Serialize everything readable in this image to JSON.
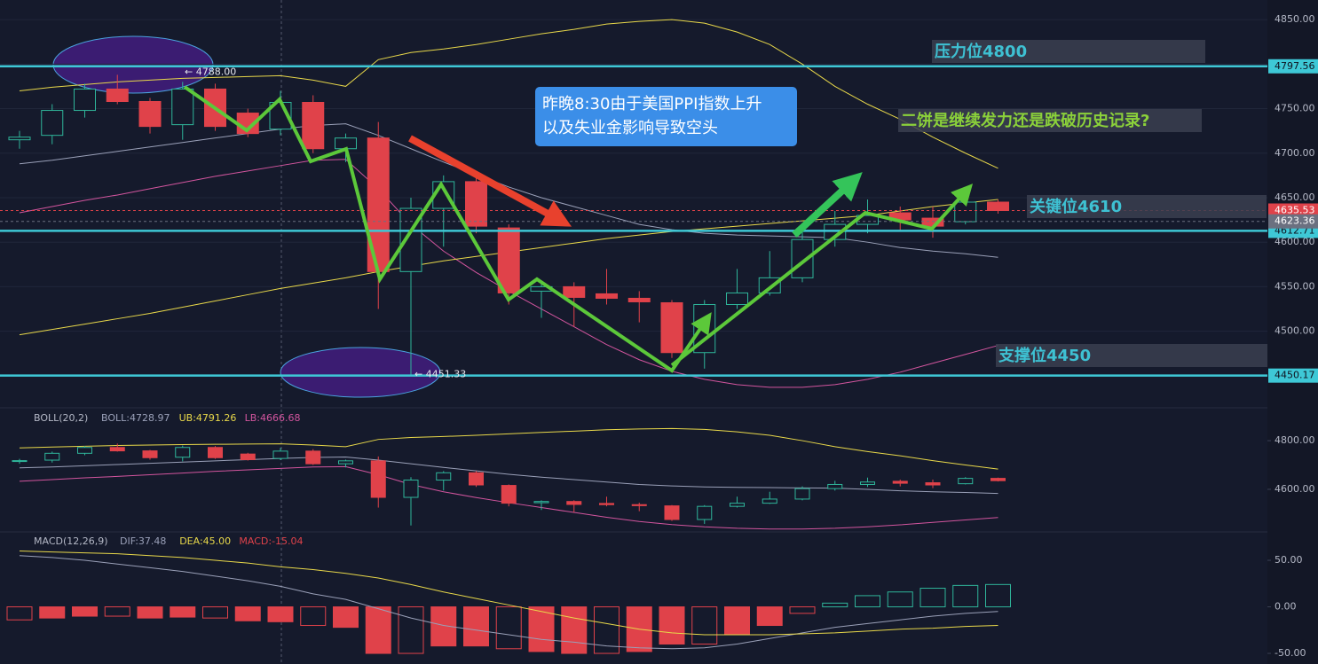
{
  "chart_data": [
    {
      "type": "candlestick",
      "open": [
        4715,
        4720,
        4748,
        4772,
        4758,
        4732,
        4772,
        4745,
        4727,
        4757,
        4705,
        4717,
        4567,
        4638,
        4668,
        4616,
        4545,
        4550,
        4542,
        4537,
        4532,
        4476,
        4530,
        4543,
        4560,
        4603,
        4620,
        4633,
        4627,
        4623,
        4645
      ],
      "high": [
        4725,
        4755,
        4778,
        4788,
        4762,
        4780,
        4778,
        4750,
        4770,
        4765,
        4722,
        4735,
        4650,
        4675,
        4675,
        4620,
        4555,
        4555,
        4570,
        4545,
        4535,
        4535,
        4570,
        4590,
        4612,
        4635,
        4648,
        4640,
        4640,
        4650,
        4648
      ],
      "low": [
        4705,
        4710,
        4740,
        4755,
        4722,
        4715,
        4725,
        4718,
        4720,
        4700,
        4690,
        4525,
        4451.33,
        4595,
        4610,
        4530,
        4515,
        4505,
        4530,
        4510,
        4470,
        4458,
        4525,
        4540,
        4555,
        4595,
        4610,
        4612,
        4605,
        4620,
        4632
      ],
      "close": [
        4718,
        4748,
        4772,
        4758,
        4730,
        4772,
        4730,
        4722,
        4757,
        4705,
        4717,
        4567,
        4638,
        4668,
        4618,
        4543,
        4550,
        4538,
        4537,
        4533,
        4476,
        4530,
        4543,
        4560,
        4603,
        4620,
        4630,
        4625,
        4618,
        4645,
        4635.53
      ],
      "up_color": "#2fb59a",
      "down_color": "#e0424a",
      "series": [
        {
          "color": "#e8d84a",
          "values": [
            4770,
            4774,
            4777,
            4780,
            4782,
            4784,
            4785,
            4786,
            4787,
            4782,
            4775,
            4805,
            4813,
            4817,
            4822,
            4828,
            4834,
            4839,
            4845,
            4848,
            4850,
            4846,
            4836,
            4822,
            4800,
            4775,
            4755,
            4738,
            4718,
            4700,
            4683
          ]
        },
        {
          "color": "#9aa0b8",
          "values": [
            4688,
            4692,
            4697,
            4702,
            4707,
            4712,
            4717,
            4722,
            4727,
            4731,
            4733,
            4720,
            4705,
            4690,
            4676,
            4662,
            4650,
            4640,
            4630,
            4620,
            4614,
            4610,
            4608,
            4607,
            4606,
            4605,
            4600,
            4594,
            4590,
            4587,
            4583
          ]
        },
        {
          "color": "#d2559e",
          "values": [
            4633,
            4640,
            4647,
            4653,
            4660,
            4667,
            4674,
            4680,
            4686,
            4692,
            4693,
            4660,
            4620,
            4590,
            4566,
            4545,
            4525,
            4505,
            4485,
            4468,
            4455,
            4446,
            4440,
            4437,
            4437,
            4440,
            4446,
            4454,
            4464,
            4474,
            4484
          ]
        },
        {
          "color": "#e8d84a",
          "values": [
            4496,
            4502,
            4508,
            4514,
            4520,
            4527,
            4534,
            4541,
            4548,
            4554,
            4560,
            4567,
            4573,
            4579,
            4584,
            4589,
            4594,
            4599,
            4604,
            4608,
            4612,
            4615,
            4618,
            4621,
            4624,
            4627,
            4630,
            4635,
            4640,
            4644,
            4648
          ]
        }
      ],
      "ylim": [
        4414,
        4872
      ],
      "yticks": [
        {
          "value": 4850,
          "label": "4850.00"
        },
        {
          "value": 4800,
          "label": "4800.00"
        },
        {
          "value": 4750,
          "label": "4750.00"
        },
        {
          "value": 4700,
          "label": "4700.00"
        },
        {
          "value": 4650,
          "label": "4650.00"
        },
        {
          "value": 4600,
          "label": "4600.00"
        },
        {
          "value": 4550,
          "label": "4550.00"
        },
        {
          "value": 4500,
          "label": "4500.00"
        }
      ],
      "grid": true,
      "levels": [
        {
          "value": 4797.56,
          "color": "#3ec8d6"
        },
        {
          "value": 4612.71,
          "color": "#3ec8d6"
        },
        {
          "value": 4450.17,
          "color": "#3ec8d6"
        },
        {
          "value": 4635.53,
          "color": "#e0424a"
        },
        {
          "value": 4623.36,
          "color": "#6b7080"
        }
      ],
      "price_markers": [
        {
          "value": 4788,
          "label": "← 4788.00"
        },
        {
          "value": 4451.33,
          "label": "← 4451.33"
        }
      ],
      "annotations": [
        "压力位4800",
        "二饼是继续发力还是跌破历史记录?",
        "关键位4610",
        "支撑位4450"
      ],
      "note": [
        "昨晚8:30由于美国PPI指数上升",
        "以及失业金影响导致空头"
      ]
    },
    {
      "type": "boll",
      "title": "BOLL(20,2)",
      "stats": [
        {
          "text": "BOLL:4728.97",
          "color": "#9aa0b8"
        },
        {
          "text": "UB:4791.26",
          "color": "#e8d84a"
        },
        {
          "text": "LB:4666.68",
          "color": "#d2559e"
        }
      ],
      "ylim": [
        4425,
        4935
      ],
      "yticks": [
        {
          "value": 4800,
          "label": "4800.00"
        },
        {
          "value": 4600,
          "label": "4600.00"
        }
      ]
    },
    {
      "type": "macd",
      "title": "MACD(12,26,9)",
      "stats": [
        {
          "text": "DIF:37.48",
          "color": "#9aa0b8"
        },
        {
          "text": "DEA:45.00",
          "color": "#e8d84a"
        },
        {
          "text": "MACD:-15.04",
          "color": "#e0424a"
        }
      ],
      "values": [
        -14,
        -12,
        -10,
        -10,
        -12,
        -11,
        -12,
        -15,
        -16,
        -20,
        -22,
        -50,
        -50,
        -42,
        -42,
        -45,
        -48,
        -50,
        -50,
        -48,
        -40,
        -40,
        -30,
        -20,
        -7,
        4,
        12,
        16,
        20,
        23,
        24
      ],
      "series": [
        {
          "color": "#9aa0b8",
          "values": [
            55,
            53,
            50,
            46,
            42,
            38,
            33,
            28,
            22,
            14,
            8,
            -2,
            -12,
            -20,
            -25,
            -30,
            -35,
            -38,
            -42,
            -44,
            -45,
            -44,
            -40,
            -34,
            -28,
            -22,
            -18,
            -14,
            -10,
            -7,
            -5
          ]
        },
        {
          "color": "#e8d84a",
          "values": [
            60,
            59,
            58,
            57,
            55,
            53,
            50,
            47,
            43,
            40,
            36,
            31,
            24,
            16,
            9,
            2,
            -5,
            -12,
            -18,
            -24,
            -28,
            -30,
            -30,
            -30,
            -29,
            -28,
            -26,
            -24,
            -23,
            -21,
            -20
          ]
        }
      ],
      "ylim": [
        -61.4,
        80.5
      ],
      "yticks": [
        {
          "value": 50,
          "label": "50.00"
        },
        {
          "value": 0,
          "label": "0.00"
        },
        {
          "value": -50,
          "label": "-50.00"
        }
      ],
      "pos_color": "#2fb59a",
      "neg_color": "#e0424a"
    }
  ]
}
